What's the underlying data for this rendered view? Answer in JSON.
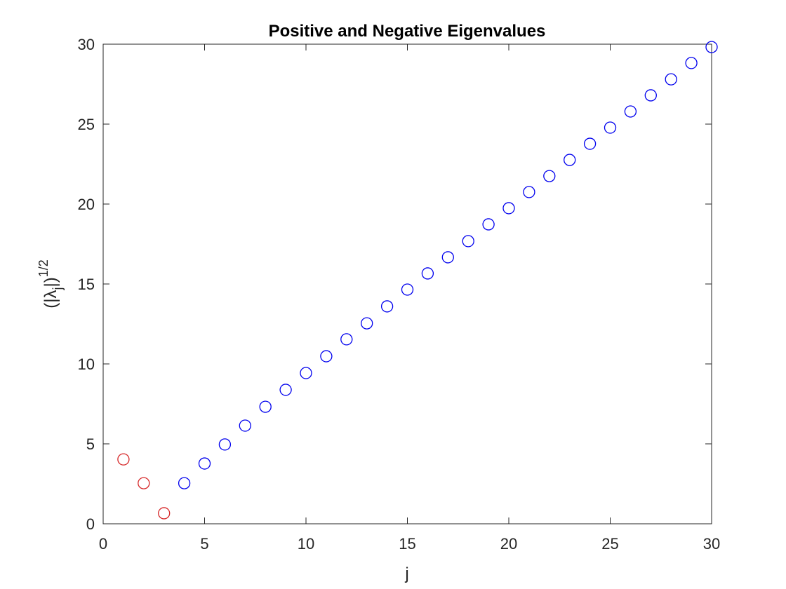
{
  "chart_data": {
    "type": "scatter",
    "title": "Positive and Negative Eigenvalues",
    "xlabel": "j",
    "ylabel": {
      "open": "(|λ",
      "sub": "j",
      "close": "|)",
      "sup": "1/2"
    },
    "series": [
      {
        "color": "#d62728",
        "x": [
          1,
          2,
          3
        ],
        "values": [
          4.03,
          2.54,
          0.66
        ]
      },
      {
        "color": "#0000ee",
        "x": [
          4,
          5,
          6,
          7,
          8,
          9,
          10,
          11,
          12,
          13,
          14,
          15,
          16,
          17,
          18,
          19,
          20,
          21,
          22,
          23,
          24,
          25,
          26,
          27,
          28,
          29,
          30
        ],
        "values": [
          2.54,
          3.77,
          4.96,
          6.14,
          7.32,
          8.38,
          9.43,
          10.48,
          11.54,
          12.54,
          13.6,
          14.65,
          15.66,
          16.67,
          17.68,
          18.73,
          19.74,
          20.75,
          21.75,
          22.76,
          23.77,
          24.78,
          25.79,
          26.8,
          27.8,
          28.82,
          29.82
        ]
      }
    ],
    "xlim": [
      0,
      30
    ],
    "xticks": [
      0,
      5,
      10,
      15,
      20,
      25,
      30
    ],
    "ylim": [
      0,
      30
    ],
    "yticks": [
      0,
      5,
      10,
      15,
      20,
      25,
      30
    ],
    "grid": false
  }
}
